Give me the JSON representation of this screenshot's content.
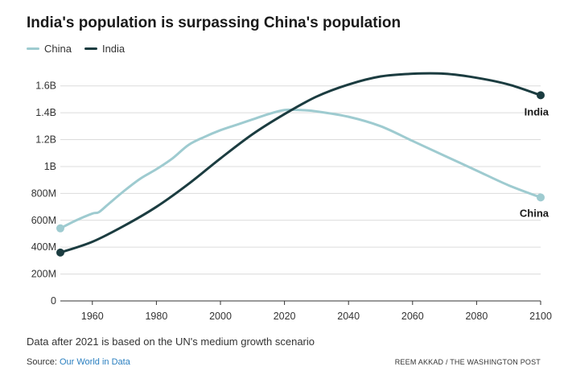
{
  "header": {
    "title": "India's population is surpassing China's population"
  },
  "legend": [
    {
      "label": "China",
      "color": "#9ecbd0"
    },
    {
      "label": "India",
      "color": "#1b3c40"
    }
  ],
  "chart_data": {
    "type": "line",
    "title": "India's population is surpassing China's population",
    "xlabel": "",
    "ylabel": "",
    "xlim": [
      1950,
      2100
    ],
    "ylim": [
      0,
      1.7
    ],
    "x_ticks": [
      1960,
      1980,
      2000,
      2020,
      2040,
      2060,
      2080,
      2100
    ],
    "y_ticks": [
      {
        "value": 0,
        "label": "0"
      },
      {
        "value": 0.2,
        "label": "200M"
      },
      {
        "value": 0.4,
        "label": "400M"
      },
      {
        "value": 0.6,
        "label": "600M"
      },
      {
        "value": 0.8,
        "label": "800M"
      },
      {
        "value": 1.0,
        "label": "1B"
      },
      {
        "value": 1.2,
        "label": "1.2B"
      },
      {
        "value": 1.4,
        "label": "1.4B"
      },
      {
        "value": 1.6,
        "label": "1.6B"
      }
    ],
    "grid": true,
    "series": [
      {
        "name": "China",
        "color": "#9ecbd0",
        "end_label": "China",
        "x": [
          1950,
          1955,
          1960,
          1962,
          1965,
          1970,
          1975,
          1980,
          1985,
          1990,
          1995,
          2000,
          2005,
          2010,
          2015,
          2020,
          2025,
          2030,
          2040,
          2050,
          2060,
          2070,
          2080,
          2090,
          2100
        ],
        "y": [
          0.54,
          0.6,
          0.65,
          0.66,
          0.72,
          0.82,
          0.91,
          0.98,
          1.06,
          1.16,
          1.22,
          1.27,
          1.31,
          1.35,
          1.39,
          1.42,
          1.42,
          1.41,
          1.37,
          1.3,
          1.19,
          1.08,
          0.97,
          0.86,
          0.77
        ]
      },
      {
        "name": "India",
        "color": "#1b3c40",
        "end_label": "India",
        "x": [
          1950,
          1960,
          1970,
          1980,
          1990,
          2000,
          2010,
          2020,
          2030,
          2040,
          2050,
          2060,
          2070,
          2080,
          2090,
          2100
        ],
        "y": [
          0.36,
          0.44,
          0.56,
          0.7,
          0.87,
          1.06,
          1.24,
          1.39,
          1.52,
          1.61,
          1.67,
          1.69,
          1.69,
          1.66,
          1.61,
          1.53
        ]
      }
    ]
  },
  "footer": {
    "note": "Data after 2021 is based on the UN's medium growth scenario",
    "source_prefix": "Source:",
    "source_link": "Our World in Data",
    "credit": "REEM AKKAD / THE WASHINGTON POST"
  }
}
